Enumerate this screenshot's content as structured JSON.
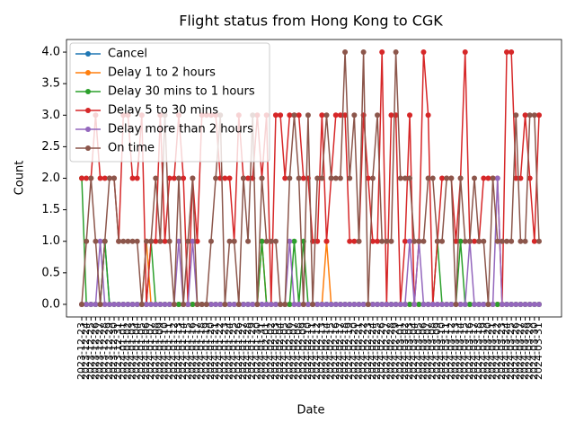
{
  "chart_data": {
    "type": "line",
    "title": "Flight status from Hong Kong to CGK",
    "x_label": "Date",
    "y_label": "Count",
    "categories": [
      "2023-12-23",
      "2023-12-24",
      "2023-12-25",
      "2023-12-26",
      "2023-12-27",
      "2023-12-28",
      "2023-12-29",
      "2023-12-30",
      "2023-12-31",
      "2024-01-01",
      "2024-01-02",
      "2024-01-03",
      "2024-01-04",
      "2024-01-05",
      "2024-01-06",
      "2024-01-07",
      "2024-01-08",
      "2024-01-09",
      "2024-01-10",
      "2024-01-11",
      "2024-01-12",
      "2024-01-13",
      "2024-01-14",
      "2024-01-15",
      "2024-01-16",
      "2024-01-17",
      "2024-01-18",
      "2024-01-19",
      "2024-01-20",
      "2024-01-21",
      "2024-01-22",
      "2024-01-23",
      "2024-01-24",
      "2024-01-25",
      "2024-01-26",
      "2024-01-27",
      "2024-01-28",
      "2024-01-29",
      "2024-01-30",
      "2024-01-31",
      "2024-02-01",
      "2024-02-02",
      "2024-02-03",
      "2024-02-04",
      "2024-02-05",
      "2024-02-06",
      "2024-02-07",
      "2024-02-08",
      "2024-02-09",
      "2024-02-10",
      "2024-02-11",
      "2024-02-12",
      "2024-02-13",
      "2024-02-14",
      "2024-02-15",
      "2024-02-16",
      "2024-02-17",
      "2024-02-18",
      "2024-02-19",
      "2024-02-20",
      "2024-02-21",
      "2024-02-22",
      "2024-02-23",
      "2024-02-24",
      "2024-02-25",
      "2024-02-26",
      "2024-02-27",
      "2024-02-28",
      "2024-02-29",
      "2024-03-01",
      "2024-03-02",
      "2024-03-03",
      "2024-03-04",
      "2024-03-05",
      "2024-03-06",
      "2024-03-07",
      "2024-03-08",
      "2024-03-09",
      "2024-03-10",
      "2024-03-11",
      "2024-03-12",
      "2024-03-13",
      "2024-03-14",
      "2024-03-15",
      "2024-03-16",
      "2024-03-17",
      "2024-03-18",
      "2024-03-19",
      "2024-03-20",
      "2024-03-21",
      "2024-03-22",
      "2024-03-23",
      "2024-03-24",
      "2024-03-25",
      "2024-03-26",
      "2024-03-27",
      "2024-03-28",
      "2024-03-29",
      "2024-03-30",
      "2024-03-31"
    ],
    "series": [
      {
        "name": "Cancel",
        "color": "#1f77b4",
        "values": [
          0,
          0,
          0,
          0,
          0,
          1,
          0,
          0,
          0,
          0,
          0,
          0,
          0,
          0,
          0,
          0,
          0,
          0,
          0,
          0,
          0,
          0,
          0,
          0,
          0,
          0,
          0,
          0,
          0,
          0,
          0,
          0,
          0,
          0,
          0,
          0,
          0,
          0,
          0,
          0,
          0,
          0,
          0,
          0,
          0,
          0,
          0,
          0,
          0,
          0,
          0,
          0,
          0,
          0,
          0,
          0,
          0,
          0,
          0,
          0,
          0,
          0,
          0,
          0,
          0,
          0,
          0,
          0,
          0,
          0,
          0,
          0,
          0,
          0,
          0,
          0,
          0,
          0,
          0,
          0,
          0,
          0,
          0,
          0,
          0,
          0,
          0,
          0,
          0,
          0,
          0,
          0,
          0,
          0,
          0,
          0,
          0,
          0,
          0,
          0
        ]
      },
      {
        "name": "Delay 1 to 2 hours",
        "color": "#ff7f0e",
        "values": [
          0,
          0,
          0,
          0,
          0,
          0,
          0,
          0,
          0,
          0,
          0,
          0,
          0,
          0,
          1,
          0,
          0,
          0,
          0,
          0,
          0,
          0,
          0,
          0,
          0,
          0,
          0,
          0,
          0,
          0,
          0,
          0,
          0,
          0,
          0,
          0,
          0,
          0,
          0,
          1,
          0,
          0,
          0,
          0,
          0,
          0,
          0,
          0,
          0,
          0,
          0,
          0,
          0,
          1,
          0,
          0,
          0,
          0,
          0,
          0,
          0,
          0,
          0,
          0,
          0,
          0,
          0,
          0,
          0,
          0,
          0,
          0,
          0,
          0,
          0,
          0,
          0,
          0,
          0,
          0,
          0,
          0,
          0,
          0,
          0,
          0,
          0,
          0,
          0,
          0,
          0,
          0,
          0,
          0,
          0,
          0,
          0,
          0,
          0,
          0
        ]
      },
      {
        "name": "Delay 30 mins to 1 hours",
        "color": "#2ca02c",
        "values": [
          2,
          0,
          0,
          0,
          0,
          1,
          0,
          0,
          0,
          0,
          0,
          0,
          0,
          0,
          0,
          1,
          0,
          0,
          0,
          0,
          0,
          0,
          0,
          0,
          0,
          0,
          0,
          0,
          0,
          0,
          0,
          0,
          0,
          0,
          0,
          0,
          0,
          0,
          0,
          1,
          0,
          0,
          0,
          0,
          0,
          0,
          1,
          0,
          1,
          0,
          0,
          0,
          0,
          0,
          0,
          0,
          0,
          0,
          0,
          0,
          0,
          0,
          0,
          0,
          0,
          0,
          0,
          0,
          0,
          0,
          0,
          0,
          0,
          0,
          0,
          0,
          0,
          1,
          0,
          0,
          0,
          0,
          1,
          0,
          0,
          0,
          0,
          0,
          0,
          0,
          0,
          0,
          0,
          0,
          0,
          0,
          0,
          0,
          0,
          0
        ]
      },
      {
        "name": "Delay 5 to 30 mins",
        "color": "#d62728",
        "values": [
          2,
          2,
          2,
          3,
          2,
          2,
          2,
          2,
          1,
          3,
          3,
          2,
          2,
          3,
          0,
          1,
          1,
          3,
          1,
          2,
          2,
          3,
          2,
          0,
          2,
          1,
          3,
          3,
          3,
          3,
          2,
          2,
          2,
          1,
          3,
          2,
          2,
          2,
          3,
          2,
          3,
          0,
          3,
          3,
          2,
          3,
          3,
          3,
          2,
          2,
          1,
          1,
          3,
          1,
          2,
          3,
          3,
          3,
          1,
          1,
          1,
          3,
          2,
          1,
          1,
          4,
          0,
          3,
          3,
          0,
          1,
          3,
          0,
          1,
          4,
          3,
          0,
          1,
          2,
          2,
          2,
          1,
          2,
          4,
          1,
          1,
          1,
          2,
          2,
          2,
          2,
          0,
          4,
          4,
          2,
          2,
          3,
          2,
          1,
          3
        ]
      },
      {
        "name": "Delay more than 2 hours",
        "color": "#9467bd",
        "values": [
          0,
          0,
          0,
          0,
          1,
          0,
          0,
          0,
          0,
          0,
          0,
          0,
          0,
          0,
          0,
          0,
          0,
          0,
          0,
          0,
          0,
          1,
          0,
          0,
          1,
          0,
          0,
          0,
          0,
          0,
          0,
          0,
          0,
          0,
          0,
          0,
          0,
          0,
          0,
          0,
          0,
          0,
          0,
          0,
          0,
          1,
          0,
          0,
          0,
          0,
          0,
          0,
          0,
          0,
          0,
          0,
          0,
          0,
          0,
          0,
          0,
          0,
          0,
          0,
          0,
          0,
          0,
          0,
          0,
          0,
          0,
          1,
          0,
          1,
          0,
          0,
          0,
          0,
          0,
          0,
          0,
          0,
          0,
          0,
          1,
          0,
          0,
          0,
          0,
          0,
          2,
          0,
          0,
          0,
          0,
          0,
          0,
          0,
          0,
          0
        ]
      },
      {
        "name": "On time",
        "color": "#8c564b",
        "values": [
          0,
          1,
          2,
          1,
          0,
          1,
          2,
          2,
          1,
          1,
          1,
          1,
          1,
          0,
          1,
          1,
          2,
          1,
          3,
          1,
          0,
          2,
          0,
          1,
          2,
          0,
          0,
          0,
          1,
          2,
          3,
          0,
          1,
          1,
          0,
          2,
          1,
          3,
          0,
          2,
          1,
          1,
          1,
          0,
          0,
          2,
          3,
          2,
          0,
          3,
          0,
          2,
          2,
          3,
          2,
          2,
          2,
          4,
          2,
          3,
          1,
          4,
          0,
          2,
          3,
          1,
          1,
          1,
          4,
          2,
          2,
          2,
          1,
          1,
          1,
          2,
          2,
          1,
          1,
          2,
          2,
          0,
          2,
          1,
          1,
          2,
          1,
          1,
          0,
          2,
          1,
          1,
          1,
          1,
          3,
          1,
          1,
          3,
          3,
          1
        ]
      }
    ],
    "ylim": [
      -0.2,
      4.2
    ],
    "yticks": [
      {
        "value": 0,
        "label": "0.0"
      },
      {
        "value": 0.5,
        "label": "0.5"
      },
      {
        "value": 1,
        "label": "1.0"
      },
      {
        "value": 1.5,
        "label": "1.5"
      },
      {
        "value": 2,
        "label": "2.0"
      },
      {
        "value": 2.5,
        "label": "2.5"
      },
      {
        "value": 3,
        "label": "3.0"
      },
      {
        "value": 3.5,
        "label": "3.5"
      },
      {
        "value": 4,
        "label": "4.0"
      }
    ],
    "grid": false,
    "legend": "upper left"
  }
}
